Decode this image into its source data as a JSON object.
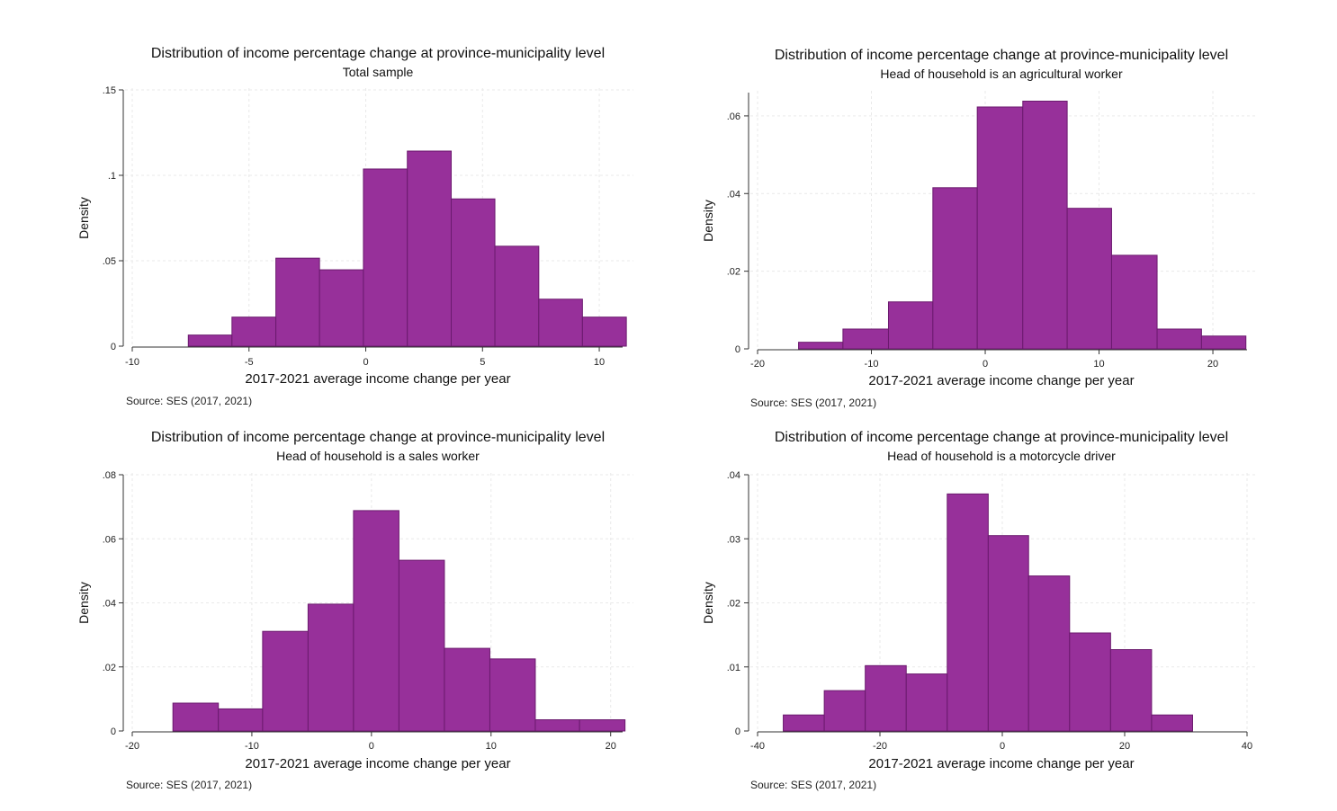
{
  "style": {
    "bar_fill": "#97309a",
    "bar_stroke": "#6b1a6e",
    "grid": "#e9e9e9",
    "axis": "#333333"
  },
  "chart_data": [
    {
      "type": "bar",
      "title": "Distribution of income percentage change at province-municipality level",
      "subtitle": "Total sample",
      "xlabel": "2017-2021 average income change per year",
      "ylabel": "Density",
      "source": "Source: SES (2017, 2021)",
      "xlim": [
        -10,
        11
      ],
      "ylim": [
        0,
        0.15
      ],
      "xticks": [
        -10,
        -5,
        0,
        5,
        10
      ],
      "xtick_labels": [
        "-10",
        "-5",
        "0",
        "5",
        "10"
      ],
      "yticks": [
        0,
        0.05,
        0.1,
        0.15
      ],
      "ytick_labels": [
        "0",
        ".05",
        ".1",
        ".15"
      ],
      "bin_edges": [
        -7.6,
        -5.73,
        -3.85,
        -1.98,
        -0.1,
        1.78,
        3.66,
        5.53,
        7.41,
        9.28,
        11.16
      ],
      "values": [
        0.0065,
        0.017,
        0.0515,
        0.0447,
        0.1037,
        0.1142,
        0.0862,
        0.0585,
        0.0275,
        0.017
      ]
    },
    {
      "type": "bar",
      "title": "Distribution of income percentage change at province-municipality level",
      "subtitle": "Head of household is an agricultural worker",
      "xlabel": "2017-2021 average income change per year",
      "ylabel": "Density",
      "source": "Source: SES (2017, 2021)",
      "xlim": [
        -20,
        23
      ],
      "ylim": [
        0,
        0.066
      ],
      "xticks": [
        -20,
        -10,
        0,
        10,
        20
      ],
      "xtick_labels": [
        "-20",
        "-10",
        "0",
        "10",
        "20"
      ],
      "yticks": [
        0,
        0.02,
        0.04,
        0.06
      ],
      "ytick_labels": [
        "0",
        ".02",
        ".04",
        ".06"
      ],
      "bin_edges": [
        -16.4,
        -12.5,
        -8.5,
        -4.6,
        -0.7,
        3.3,
        7.2,
        11.1,
        15.1,
        19,
        22.9
      ],
      "values": [
        0.0017,
        0.0051,
        0.0121,
        0.0415,
        0.0623,
        0.0638,
        0.0362,
        0.0241,
        0.0051,
        0.0033
      ]
    },
    {
      "type": "bar",
      "title": "Distribution of income percentage change at province-municipality level",
      "subtitle": "Head of household is a sales worker",
      "xlabel": "2017-2021 average income change per year",
      "ylabel": "Density",
      "source": "Source: SES (2017, 2021)",
      "xlim": [
        -20,
        21
      ],
      "ylim": [
        0,
        0.08
      ],
      "xticks": [
        -20,
        -10,
        0,
        10,
        20
      ],
      "xtick_labels": [
        "-20",
        "-10",
        "0",
        "10",
        "20"
      ],
      "yticks": [
        0,
        0.02,
        0.04,
        0.06,
        0.08
      ],
      "ytick_labels": [
        "0",
        ".02",
        ".04",
        ".06",
        ".08"
      ],
      "bin_edges": [
        -16.6,
        -12.8,
        -9.1,
        -5.3,
        -1.5,
        2.3,
        6.1,
        9.9,
        13.7,
        17.4,
        21.2
      ],
      "values": [
        0.0087,
        0.0069,
        0.0311,
        0.0396,
        0.0688,
        0.0533,
        0.0258,
        0.0225,
        0.0035,
        0.0035
      ]
    },
    {
      "type": "bar",
      "title": "Distribution of income percentage change at province-municipality level",
      "subtitle": "Head of household is a motorcycle driver",
      "xlabel": "2017-2021 average income change per year",
      "ylabel": "Density",
      "source": "Source: SES (2017, 2021)",
      "xlim": [
        -40,
        40
      ],
      "ylim": [
        0,
        0.04
      ],
      "xticks": [
        -40,
        -20,
        0,
        20,
        40
      ],
      "xtick_labels": [
        "-40",
        "-20",
        "0",
        "20",
        "40"
      ],
      "yticks": [
        0,
        0.01,
        0.02,
        0.03,
        0.04
      ],
      "ytick_labels": [
        "0",
        ".01",
        ".02",
        ".03",
        ".04"
      ],
      "bin_edges": [
        -35.8,
        -29.1,
        -22.4,
        -15.7,
        -9,
        -2.3,
        4.3,
        11,
        17.7,
        24.4,
        31.1
      ],
      "values": [
        0.0025,
        0.0063,
        0.0102,
        0.0089,
        0.037,
        0.0305,
        0.0242,
        0.0153,
        0.0127,
        0.0025
      ]
    }
  ]
}
